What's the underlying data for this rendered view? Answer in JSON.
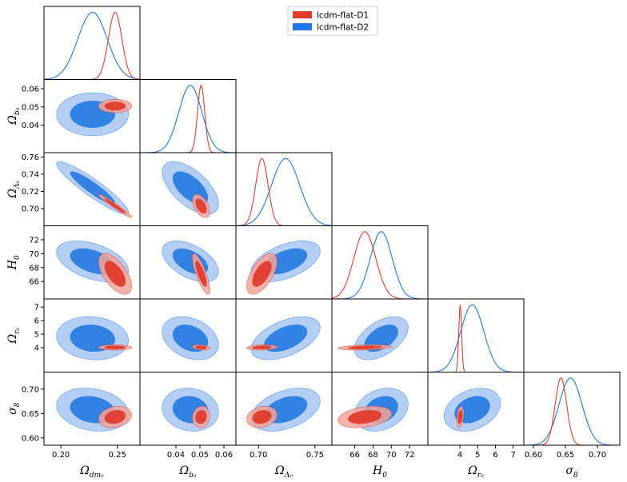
{
  "chart_data": {
    "type": "triangle-corner",
    "legend_position": "top-right",
    "series": [
      {
        "name": "lcdm-flat-D1",
        "color": "#e03c2c",
        "fill_outer": "#f0a39a",
        "fill_inner": "#e03c2c"
      },
      {
        "name": "lcdm-flat-D2",
        "color": "#1f77e8",
        "fill_outer": "#a8c6f2",
        "fill_inner": "#2a7de1"
      }
    ],
    "parameters": [
      {
        "key": "omdm",
        "label_main": "Ω",
        "label_sub": "dm₀",
        "range": [
          0.185,
          0.27
        ],
        "ticks": [
          0.2,
          0.25
        ],
        "tick_labels": [
          "0.20",
          "0.25"
        ],
        "mean": [
          0.248,
          0.228
        ],
        "sigma": [
          0.006,
          0.013
        ]
      },
      {
        "key": "omb",
        "label_main": "Ω",
        "label_sub": "b₀",
        "range": [
          0.025,
          0.065
        ],
        "ticks": [
          0.04,
          0.05,
          0.06
        ],
        "tick_labels": [
          "0.04",
          "0.05",
          "0.06"
        ],
        "mean": [
          0.0505,
          0.046
        ],
        "sigma": [
          0.0015,
          0.0048
        ]
      },
      {
        "key": "oml",
        "label_main": "Ω",
        "label_sub": "Λ₀",
        "range": [
          0.68,
          0.765
        ],
        "ticks": [
          0.7,
          0.72,
          0.74,
          0.76
        ],
        "tick_labels": [
          "0.70",
          "0.72",
          "0.74",
          "0.76"
        ],
        "tick_labels_x": [
          "0.70",
          "0.75"
        ],
        "ticks_x": [
          0.7,
          0.75
        ],
        "mean": [
          0.703,
          0.724
        ],
        "sigma": [
          0.0055,
          0.0125
        ]
      },
      {
        "key": "h0",
        "label_main": "H",
        "label_sub": "0",
        "range": [
          63.5,
          74
        ],
        "ticks": [
          66,
          68,
          70,
          72
        ],
        "tick_labels": [
          "66",
          "68",
          "70",
          "72"
        ],
        "mean": [
          67.1,
          68.9
        ],
        "sigma": [
          1.2,
          1.2
        ]
      },
      {
        "key": "omr",
        "label_main": "Ω",
        "label_sub": "r₀",
        "range": [
          2.2,
          7.6
        ],
        "ticks": [
          4,
          5,
          6,
          7
        ],
        "tick_labels": [
          "4",
          "5",
          "6",
          "7"
        ],
        "mean": [
          4.02,
          4.7
        ],
        "sigma": [
          0.08,
          0.65
        ]
      },
      {
        "key": "s8",
        "label_main": "σ",
        "label_sub": "8",
        "range": [
          0.585,
          0.735
        ],
        "ticks": [
          0.6,
          0.65,
          0.7
        ],
        "tick_labels": [
          "0.60",
          "0.65",
          "0.70"
        ],
        "mean": [
          0.643,
          0.658
        ],
        "sigma": [
          0.009,
          0.018
        ]
      }
    ],
    "correlations": {
      "D1": {
        "1,0": 0.0,
        "2,0": -0.97,
        "2,1": -0.5,
        "3,0": -0.6,
        "3,1": -0.8,
        "3,2": 0.6,
        "4,0": 0.0,
        "4,1": -0.3,
        "4,2": 0.2,
        "4,3": 0.3,
        "5,0": 0.2,
        "5,1": 0.1,
        "5,2": 0.2,
        "5,3": 0.3,
        "5,4": 0.3
      },
      "D2": {
        "1,0": 0.0,
        "2,0": -0.92,
        "2,1": -0.6,
        "3,0": -0.45,
        "3,1": -0.5,
        "3,2": 0.5,
        "4,0": -0.1,
        "4,1": -0.3,
        "4,2": 0.5,
        "4,3": 0.5,
        "5,0": -0.2,
        "5,1": -0.1,
        "5,2": 0.4,
        "5,3": 0.25,
        "5,4": 0.3
      }
    }
  }
}
